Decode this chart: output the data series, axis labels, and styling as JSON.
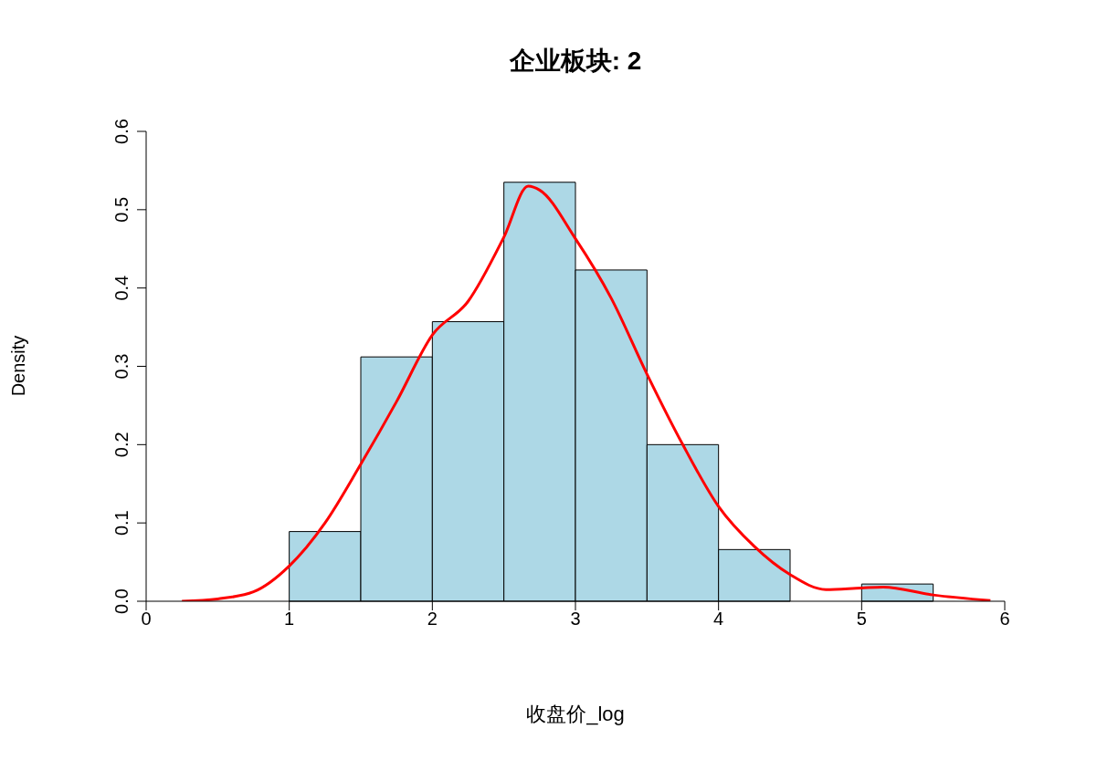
{
  "chart_data": {
    "type": "histogram",
    "title": "企业板块: 2",
    "xlabel": "收盘价_log",
    "ylabel": "Density",
    "color": "#add8e6",
    "bins": [
      1,
      1.5,
      2,
      2.5,
      3,
      3.5,
      4,
      4.5,
      5,
      5.5
    ],
    "values": [
      0.089,
      0.312,
      0.357,
      0.535,
      0.423,
      0.2,
      0.066,
      0,
      0.022
    ],
    "series": [
      {
        "type": "line",
        "color": "#ff0000",
        "x": [
          0.25,
          0.5,
          0.75,
          1,
          1.25,
          1.5,
          1.75,
          2,
          2.25,
          2.5,
          2.67,
          2.75,
          3,
          3.25,
          3.5,
          3.75,
          4,
          4.25,
          4.5,
          4.75,
          5,
          5.15,
          5.5,
          5.9
        ],
        "values": [
          0,
          0.003,
          0.012,
          0.045,
          0.1,
          0.175,
          0.255,
          0.34,
          0.383,
          0.465,
          0.53,
          0.525,
          0.463,
          0.387,
          0.29,
          0.2,
          0.121,
          0.07,
          0.034,
          0.015,
          0.017,
          0.018,
          0.008,
          0.001
        ]
      }
    ],
    "xlim": [
      0,
      6
    ],
    "xticks": [
      0,
      1,
      2,
      3,
      4,
      5,
      6
    ],
    "ylim": [
      0,
      0.6
    ],
    "yticks": [
      {
        "value": 0,
        "label": "0.0"
      },
      0.1,
      0.2,
      0.3,
      0.4,
      0.5,
      0.6
    ]
  }
}
